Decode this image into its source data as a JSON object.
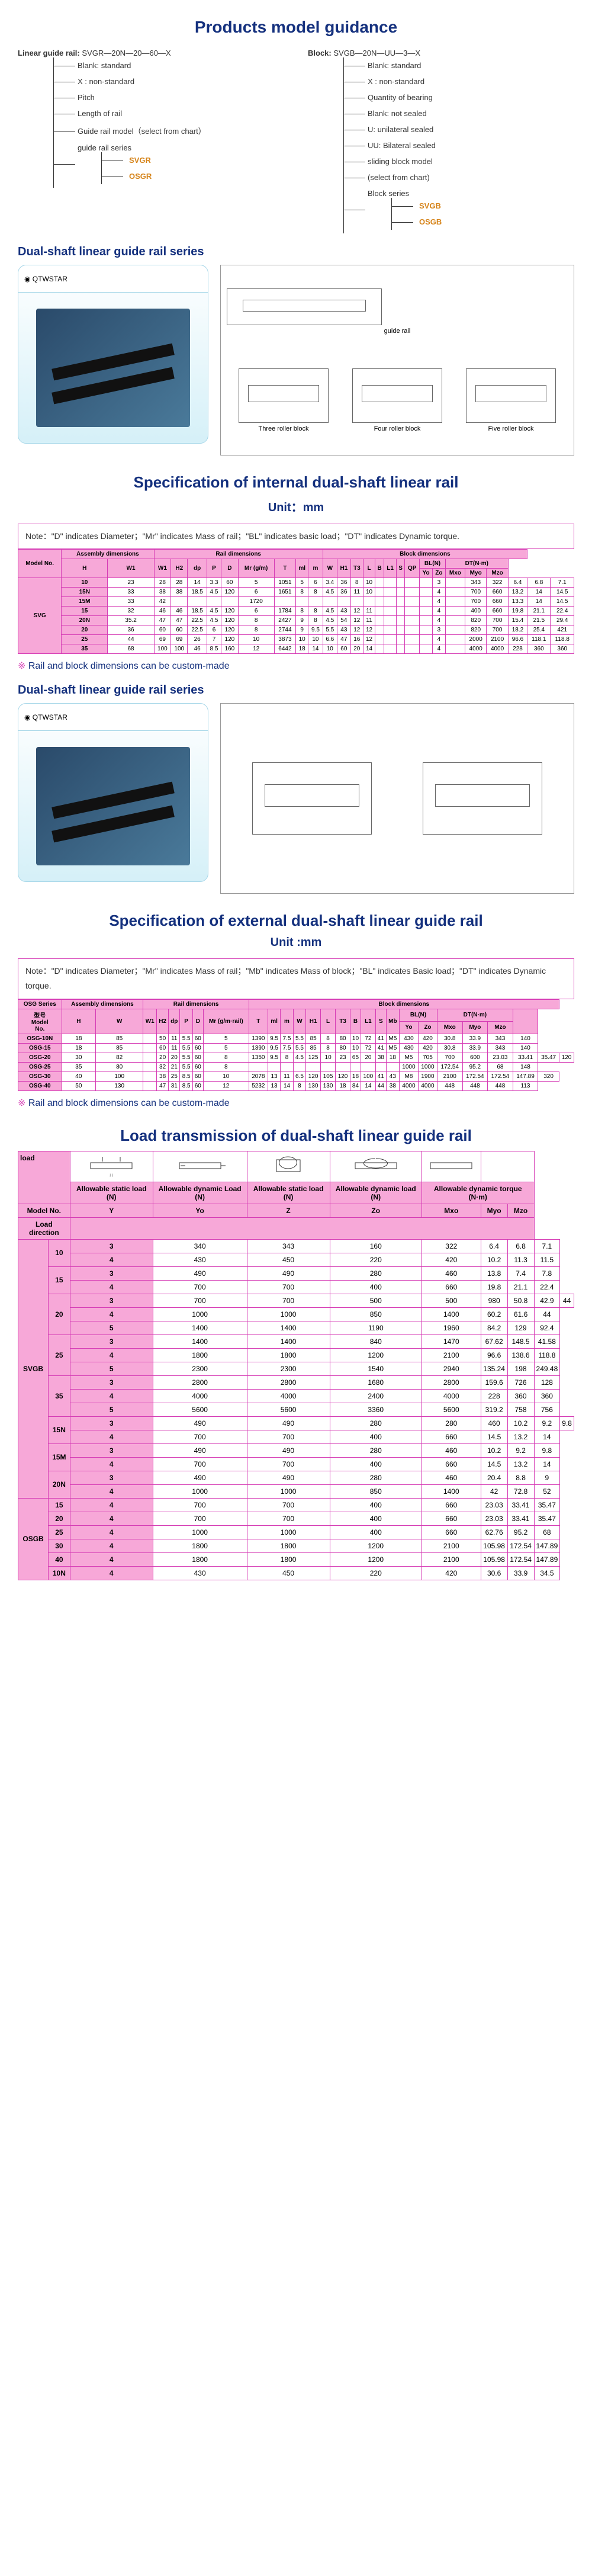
{
  "guidance": {
    "title": "Products model guidance",
    "left_label": "Linear guide rail:",
    "left_code": "SVGR—20N—20—60—X",
    "left_items": [
      "Blank: standard",
      "X : non-standard",
      "Pitch",
      "Length of rail",
      "Guide rail model（select from chart）",
      "guide rail series"
    ],
    "left_series": [
      "SVGR",
      "OSGR"
    ],
    "right_label": "Block:",
    "right_code": "SVGB—20N—UU—3—X",
    "right_items": [
      "Blank: standard",
      "X : non-standard",
      "Quantity of bearing",
      "Blank: not sealed",
      "U: unilateral sealed",
      "UU: Bilateral sealed",
      "sliding block model",
      "(select from chart)",
      "Block series"
    ],
    "right_series": [
      "SVGB",
      "OSGB"
    ]
  },
  "section_dual_title": "Dual-shaft linear guide rail series",
  "tech_labels": {
    "top": "guide rail",
    "a": "Three roller block",
    "b": "Four roller block",
    "c": "Five roller block"
  },
  "spec_int": {
    "title": "Specification of internal dual-shaft linear rail",
    "unit": "Unit：mm",
    "note": "Note：\"D\" indicates Diameter；\"Mr\" indicates Mass of rail；\"BL\" indicates basic load；\"DT\" indicates Dynamic torque.",
    "group_headers": [
      "Model No.",
      "Assembly dimensions",
      "Rail dimensions",
      "Block dimensions"
    ],
    "rail_cols": [
      "H",
      "W1",
      "W1",
      "H2",
      "dp",
      "P",
      "D",
      "Mr (g/m)",
      "T",
      "ml",
      "m"
    ],
    "block_cols": [
      "W",
      "H1",
      "T3",
      "L",
      "B",
      "L1",
      "S",
      "QP",
      "BL(N)",
      "DT(N·m)"
    ],
    "bl_cols": [
      "Yo",
      "Zo"
    ],
    "dt_cols": [
      "Mxo",
      "Myo",
      "Mzo"
    ],
    "series": "SVG",
    "rows": [
      {
        "m": "10",
        "asm": [
          "23",
          "28",
          "28",
          "14",
          "3.3",
          "60",
          "5",
          "1051",
          "5",
          "6",
          "3.4"
        ],
        "blk": [
          "36",
          "8",
          "10",
          "",
          "",
          "",
          "",
          "",
          "3",
          "",
          "343",
          "322",
          "6.4",
          "6.8",
          "7.1"
        ]
      },
      {
        "m": "15N",
        "asm": [
          "33",
          "38",
          "38",
          "18.5",
          "4.5",
          "120",
          "6",
          "1651",
          "8",
          "8",
          "4.5"
        ],
        "blk": [
          "36",
          "11",
          "10",
          "",
          "",
          "",
          "",
          "",
          "4",
          "",
          "700",
          "660",
          "13.2",
          "14",
          "14.5"
        ]
      },
      {
        "m": "15M",
        "asm": [
          "33",
          "42",
          "",
          "",
          "",
          "",
          "1720",
          "",
          "",
          "",
          ""
        ],
        "blk": [
          "",
          "",
          "",
          "",
          "",
          "",
          "",
          "",
          "4",
          "",
          "700",
          "660",
          "13.3",
          "14",
          "14.5"
        ]
      },
      {
        "m": "15",
        "asm": [
          "32",
          "46",
          "46",
          "18.5",
          "4.5",
          "120",
          "6",
          "1784",
          "8",
          "8",
          "4.5"
        ],
        "blk": [
          "43",
          "12",
          "11",
          "",
          "",
          "",
          "",
          "",
          "4",
          "",
          "400",
          "660",
          "19.8",
          "21.1",
          "22.4"
        ]
      },
      {
        "m": "20N",
        "asm": [
          "35.2",
          "47",
          "47",
          "22.5",
          "4.5",
          "120",
          "8",
          "2427",
          "9",
          "8",
          "4.5"
        ],
        "blk": [
          "54",
          "12",
          "11",
          "",
          "",
          "",
          "",
          "",
          "4",
          "",
          "820",
          "700",
          "15.4",
          "21.5",
          "29.4"
        ]
      },
      {
        "m": "20",
        "asm": [
          "36",
          "60",
          "60",
          "22.5",
          "6",
          "120",
          "8",
          "2744",
          "9",
          "9.5",
          "5.5"
        ],
        "blk": [
          "43",
          "12",
          "12",
          "",
          "",
          "",
          "",
          "",
          "3",
          "",
          "820",
          "700",
          "18.2",
          "25.4",
          "421"
        ]
      },
      {
        "m": "25",
        "asm": [
          "44",
          "69",
          "69",
          "26",
          "7",
          "120",
          "10",
          "3873",
          "10",
          "10",
          "6.6"
        ],
        "blk": [
          "47",
          "16",
          "12",
          "",
          "",
          "",
          "",
          "",
          "4",
          "",
          "2000",
          "2100",
          "96.6",
          "118.1",
          "118.8"
        ]
      },
      {
        "m": "35",
        "asm": [
          "68",
          "100",
          "100",
          "46",
          "8.5",
          "160",
          "12",
          "6442",
          "18",
          "14",
          "10"
        ],
        "blk": [
          "60",
          "20",
          "14",
          "",
          "",
          "",
          "",
          "",
          "4",
          "",
          "4000",
          "4000",
          "228",
          "360",
          "360"
        ]
      }
    ]
  },
  "custom_note": "Rail and block dimensions can be custom-made",
  "spec_ext": {
    "title": "Specification of external dual-shaft linear guide rail",
    "unit": "Unit :mm",
    "note": "Note：\"D\" indicates Diameter；\"Mr\" indicates Mass of rail；\"Mb\" indicates Mass of block；\"BL\" indicates Basic load；\"DT\" indicates Dynamic torque.",
    "series_label": "OSG Series",
    "cols_asm": [
      "H",
      "W",
      "W1",
      "H2",
      "dp",
      "P",
      "D",
      "Mr (g/m·rail)"
    ],
    "cols_blk": [
      "T",
      "ml",
      "m",
      "W",
      "H1",
      "L",
      "T3",
      "B",
      "L1",
      "S",
      "Mb",
      "BL(N)",
      "DT(N·m)"
    ],
    "bl_cols": [
      "Yo",
      "Zo"
    ],
    "dt_cols": [
      "Mxo",
      "Myo",
      "Mzo"
    ],
    "rows": [
      {
        "m": "OSG-10N",
        "h": [
          "18",
          "85",
          "",
          "50",
          "11",
          "5.5",
          "60",
          "5",
          "1390",
          "9.5",
          "7.5",
          "5.5",
          "85",
          "8",
          "80",
          "10",
          "72",
          "41",
          "M5",
          "430",
          "420",
          "30.8",
          "33.9",
          "343",
          "140"
        ]
      },
      {
        "m": "OSG-15",
        "h": [
          "18",
          "85",
          "",
          "60",
          "11",
          "5.5",
          "60",
          "5",
          "1390",
          "9.5",
          "7.5",
          "5.5",
          "85",
          "8",
          "80",
          "10",
          "72",
          "41",
          "M5",
          "430",
          "420",
          "30.8",
          "33.9",
          "343",
          "140"
        ]
      },
      {
        "m": "OSG-20",
        "h": [
          "30",
          "82",
          "",
          "20",
          "20",
          "5.5",
          "60",
          "8",
          "1350",
          "9.5",
          "8",
          "4.5",
          "125",
          "10",
          "23",
          "65",
          "20",
          "38",
          "18",
          "M5",
          "705",
          "700",
          "600",
          "23.03",
          "33.41",
          "35.47",
          "120"
        ]
      },
      {
        "m": "OSG-25",
        "h": [
          "35",
          "80",
          "",
          "32",
          "21",
          "5.5",
          "60",
          "8",
          "",
          "",
          "",
          "",
          "",
          "",
          "",
          "",
          "",
          "",
          "",
          "1000",
          "1000",
          "172.54",
          "95.2",
          "68",
          "148"
        ]
      },
      {
        "m": "OSG-30",
        "h": [
          "40",
          "100",
          "",
          "38",
          "25",
          "8.5",
          "60",
          "10",
          "2078",
          "13",
          "11",
          "6.5",
          "120",
          "105",
          "120",
          "18",
          "100",
          "41",
          "43",
          "M8",
          "1900",
          "2100",
          "172.54",
          "172.54",
          "147.89",
          "320"
        ]
      },
      {
        "m": "OSG-40",
        "h": [
          "50",
          "130",
          "",
          "47",
          "31",
          "8.5",
          "60",
          "12",
          "5232",
          "13",
          "14",
          "8",
          "130",
          "130",
          "18",
          "84",
          "14",
          "44",
          "38",
          "4000",
          "4000",
          "448",
          "448",
          "448",
          "113"
        ]
      }
    ]
  },
  "load": {
    "title": "Load transmission of dual-shaft linear guide rail",
    "header_load": "load",
    "hdr_cols": [
      "Allowable static load (N)",
      "Allowable dynamic Load (N)",
      "Allowable static load (N)",
      "Allowable dynamic load (N)",
      "Allowable dynamic torque (N·m)"
    ],
    "sub_cols": [
      "Y",
      "Yo",
      "Z",
      "Zo",
      "Mxo",
      "Myo",
      "Mzo"
    ],
    "model_label": "Model No.",
    "dir_label": "Load direction",
    "groups": [
      {
        "series": "SVGB",
        "rows": [
          {
            "m": "10",
            "n": "3",
            "v": [
              "340",
              "343",
              "160",
              "322",
              "6.4",
              "6.8",
              "7.1"
            ]
          },
          {
            "m": "10",
            "n": "4",
            "v": [
              "430",
              "450",
              "220",
              "420",
              "10.2",
              "11.3",
              "11.5"
            ]
          },
          {
            "m": "15N",
            "n": "3",
            "v": [
              "490",
              "490",
              "280",
              "280",
              "460",
              "10.2",
              "9.2",
              "9.8"
            ]
          },
          {
            "m": "15N",
            "n": "4",
            "v": [
              "700",
              "700",
              "400",
              "660",
              "14.5",
              "13.2",
              "14"
            ]
          },
          {
            "m": "15M",
            "n": "3",
            "v": [
              "490",
              "490",
              "280",
              "460",
              "10.2",
              "9.2",
              "9.8"
            ]
          },
          {
            "m": "15M",
            "n": "4",
            "v": [
              "700",
              "700",
              "400",
              "660",
              "14.5",
              "13.2",
              "14"
            ]
          },
          {
            "m": "15",
            "n": "3",
            "v": [
              "490",
              "490",
              "280",
              "460",
              "13.8",
              "7.4",
              "7.8"
            ]
          },
          {
            "m": "15",
            "n": "4",
            "v": [
              "700",
              "700",
              "400",
              "660",
              "19.8",
              "21.1",
              "22.4"
            ]
          },
          {
            "m": "20N",
            "n": "3",
            "v": [
              "490",
              "490",
              "280",
              "460",
              "20.4",
              "8.8",
              "9"
            ]
          },
          {
            "m": "20N",
            "n": "4",
            "v": [
              "1000",
              "1000",
              "850",
              "1400",
              "42",
              "72.8",
              "52"
            ]
          },
          {
            "m": "20",
            "n": "3",
            "v": [
              "700",
              "700",
              "500",
              "500",
              "980",
              "50.8",
              "42.9",
              "44"
            ]
          },
          {
            "m": "20",
            "n": "4",
            "v": [
              "1000",
              "1000",
              "850",
              "1400",
              "60.2",
              "61.6",
              "44"
            ]
          },
          {
            "m": "20",
            "n": "5",
            "v": [
              "1400",
              "1400",
              "1190",
              "1960",
              "84.2",
              "129",
              "92.4"
            ]
          },
          {
            "m": "25",
            "n": "3",
            "v": [
              "1400",
              "1400",
              "840",
              "1470",
              "67.62",
              "148.5",
              "41.58"
            ]
          },
          {
            "m": "25",
            "n": "4",
            "v": [
              "1800",
              "1800",
              "1200",
              "2100",
              "96.6",
              "138.6",
              "118.8"
            ]
          },
          {
            "m": "25",
            "n": "5",
            "v": [
              "2300",
              "2300",
              "1540",
              "2940",
              "135.24",
              "198",
              "249.48"
            ]
          },
          {
            "m": "35",
            "n": "3",
            "v": [
              "2800",
              "2800",
              "1680",
              "2800",
              "159.6",
              "726",
              "128"
            ]
          },
          {
            "m": "35",
            "n": "4",
            "v": [
              "4000",
              "4000",
              "2400",
              "4000",
              "228",
              "360",
              "360"
            ]
          },
          {
            "m": "35",
            "n": "5",
            "v": [
              "5600",
              "5600",
              "3360",
              "5600",
              "319.2",
              "758",
              "756"
            ]
          }
        ]
      },
      {
        "series": "OSGB",
        "rows": [
          {
            "m": "10N",
            "n": "4",
            "v": [
              "430",
              "450",
              "220",
              "420",
              "30.6",
              "33.9",
              "34.5"
            ]
          },
          {
            "m": "15",
            "n": "4",
            "v": [
              "700",
              "700",
              "400",
              "660",
              "23.03",
              "33.41",
              "35.47"
            ]
          },
          {
            "m": "20",
            "n": "4",
            "v": [
              "700",
              "700",
              "400",
              "660",
              "23.03",
              "33.41",
              "35.47"
            ]
          },
          {
            "m": "25",
            "n": "4",
            "v": [
              "1000",
              "1000",
              "400",
              "660",
              "62.76",
              "95.2",
              "68"
            ]
          },
          {
            "m": "30",
            "n": "4",
            "v": [
              "1800",
              "1800",
              "1200",
              "2100",
              "105.98",
              "172.54",
              "147.89"
            ]
          },
          {
            "m": "40",
            "n": "4",
            "v": [
              "1800",
              "1800",
              "1200",
              "2100",
              "105.98",
              "172.54",
              "147.89"
            ]
          }
        ]
      }
    ]
  }
}
